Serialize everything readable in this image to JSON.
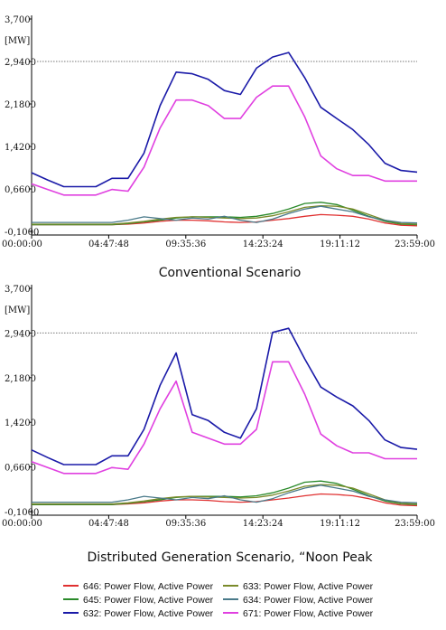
{
  "chart_data": [
    {
      "type": "line",
      "caption": "Conventional Scenario",
      "ylabel": "[MW]",
      "ylim": [
        -0.1,
        3.7
      ],
      "yticks": [
        "3,700",
        "2,9400",
        "2,1800",
        "1,4200",
        "0,6600",
        "-0,1000"
      ],
      "ytick_values": [
        3.7,
        2.94,
        2.18,
        1.42,
        0.66,
        -0.1
      ],
      "xticks": [
        "00:00:00",
        "04:47:48",
        "09:35:36",
        "14:23:24",
        "19:11:12",
        "23:59:00"
      ],
      "x_hours": [
        0,
        1,
        2,
        3,
        4,
        5,
        6,
        7,
        8,
        9,
        10,
        11,
        12,
        13,
        14,
        15,
        16,
        17,
        18,
        19,
        20,
        21,
        22,
        23,
        24
      ],
      "reference_line": 2.94,
      "series": [
        {
          "name": "646: Power Flow, Active Power",
          "color": "#e03030",
          "values": [
            0.02,
            0.02,
            0.02,
            0.02,
            0.02,
            0.02,
            0.03,
            0.05,
            0.08,
            0.1,
            0.1,
            0.09,
            0.07,
            0.06,
            0.07,
            0.1,
            0.13,
            0.17,
            0.2,
            0.19,
            0.17,
            0.12,
            0.05,
            0.01,
            0.0
          ]
        },
        {
          "name": "645: Power Flow, Active Power",
          "color": "#2a8a2a",
          "values": [
            0.02,
            0.02,
            0.02,
            0.02,
            0.02,
            0.02,
            0.04,
            0.07,
            0.1,
            0.14,
            0.16,
            0.16,
            0.16,
            0.15,
            0.17,
            0.22,
            0.3,
            0.4,
            0.42,
            0.38,
            0.28,
            0.17,
            0.08,
            0.03,
            0.02
          ]
        },
        {
          "name": "632: Power Flow, Active Power",
          "color": "#1a1aa8",
          "values": [
            0.95,
            0.82,
            0.7,
            0.7,
            0.7,
            0.85,
            0.85,
            1.3,
            2.15,
            2.75,
            2.72,
            2.62,
            2.42,
            2.35,
            2.82,
            3.02,
            3.1,
            2.65,
            2.12,
            1.92,
            1.72,
            1.45,
            1.12,
            0.99,
            0.96
          ]
        },
        {
          "name": "633: Power Flow, Active Power",
          "color": "#7a8a2a",
          "values": [
            0.03,
            0.03,
            0.03,
            0.03,
            0.03,
            0.03,
            0.05,
            0.08,
            0.12,
            0.15,
            0.16,
            0.15,
            0.14,
            0.13,
            0.14,
            0.18,
            0.25,
            0.33,
            0.36,
            0.35,
            0.3,
            0.2,
            0.1,
            0.04,
            0.03
          ]
        },
        {
          "name": "634: Power Flow, Active Power",
          "color": "#4a7a8a",
          "values": [
            0.06,
            0.06,
            0.06,
            0.06,
            0.06,
            0.06,
            0.1,
            0.16,
            0.13,
            0.1,
            0.14,
            0.12,
            0.17,
            0.1,
            0.06,
            0.12,
            0.22,
            0.3,
            0.35,
            0.3,
            0.25,
            0.16,
            0.1,
            0.06,
            0.05
          ]
        },
        {
          "name": "671: Power Flow, Active Power",
          "color": "#e040e0",
          "values": [
            0.75,
            0.65,
            0.55,
            0.55,
            0.55,
            0.65,
            0.62,
            1.05,
            1.75,
            2.25,
            2.25,
            2.15,
            1.92,
            1.92,
            2.3,
            2.5,
            2.5,
            1.95,
            1.25,
            1.02,
            0.9,
            0.9,
            0.8,
            0.8,
            0.8
          ]
        }
      ]
    },
    {
      "type": "line",
      "caption": "Distributed Generation Scenario, “Noon Peak",
      "ylabel": "[MW]",
      "ylim": [
        -0.1,
        3.7
      ],
      "yticks": [
        "3,700",
        "2,9400",
        "2,1800",
        "1,4200",
        "0,6600",
        "-0,1000"
      ],
      "ytick_values": [
        3.7,
        2.94,
        2.18,
        1.42,
        0.66,
        -0.1
      ],
      "xticks": [
        "00:00:00",
        "04:47:48",
        "09:35:36",
        "14:23:24",
        "19:11:12",
        "23:59:00"
      ],
      "x_hours": [
        0,
        1,
        2,
        3,
        4,
        5,
        6,
        7,
        8,
        9,
        10,
        11,
        12,
        13,
        14,
        15,
        16,
        17,
        18,
        19,
        20,
        21,
        22,
        23,
        24
      ],
      "reference_line": 2.94,
      "series": [
        {
          "name": "646: Power Flow, Active Power",
          "color": "#e03030",
          "values": [
            0.02,
            0.02,
            0.02,
            0.02,
            0.02,
            0.02,
            0.03,
            0.05,
            0.08,
            0.1,
            0.1,
            0.09,
            0.07,
            0.06,
            0.07,
            0.1,
            0.13,
            0.17,
            0.2,
            0.19,
            0.17,
            0.12,
            0.05,
            0.01,
            0.0
          ]
        },
        {
          "name": "645: Power Flow, Active Power",
          "color": "#2a8a2a",
          "values": [
            0.02,
            0.02,
            0.02,
            0.02,
            0.02,
            0.02,
            0.04,
            0.07,
            0.1,
            0.14,
            0.16,
            0.16,
            0.16,
            0.15,
            0.17,
            0.22,
            0.3,
            0.4,
            0.42,
            0.38,
            0.28,
            0.17,
            0.08,
            0.03,
            0.02
          ]
        },
        {
          "name": "632: Power Flow, Active Power",
          "color": "#1a1aa8",
          "values": [
            0.95,
            0.82,
            0.7,
            0.7,
            0.7,
            0.85,
            0.85,
            1.3,
            2.05,
            2.6,
            1.55,
            1.45,
            1.25,
            1.15,
            1.65,
            2.95,
            3.02,
            2.5,
            2.02,
            1.85,
            1.7,
            1.45,
            1.12,
            0.99,
            0.96
          ]
        },
        {
          "name": "633: Power Flow, Active Power",
          "color": "#7a8a2a",
          "values": [
            0.03,
            0.03,
            0.03,
            0.03,
            0.03,
            0.03,
            0.05,
            0.08,
            0.12,
            0.15,
            0.16,
            0.15,
            0.14,
            0.13,
            0.14,
            0.18,
            0.25,
            0.33,
            0.36,
            0.35,
            0.3,
            0.2,
            0.1,
            0.04,
            0.03
          ]
        },
        {
          "name": "634: Power Flow, Active Power",
          "color": "#4a7a8a",
          "values": [
            0.06,
            0.06,
            0.06,
            0.06,
            0.06,
            0.06,
            0.1,
            0.16,
            0.13,
            0.1,
            0.14,
            0.12,
            0.17,
            0.1,
            0.06,
            0.12,
            0.22,
            0.3,
            0.35,
            0.3,
            0.25,
            0.16,
            0.1,
            0.06,
            0.05
          ]
        },
        {
          "name": "671: Power Flow, Active Power",
          "color": "#e040e0",
          "values": [
            0.75,
            0.65,
            0.55,
            0.55,
            0.55,
            0.65,
            0.62,
            1.05,
            1.65,
            2.12,
            1.25,
            1.15,
            1.05,
            1.05,
            1.3,
            2.45,
            2.45,
            1.9,
            1.22,
            1.02,
            0.9,
            0.9,
            0.8,
            0.8,
            0.8
          ]
        }
      ]
    }
  ],
  "legend": [
    {
      "label": "646: Power Flow, Active Power",
      "color": "#e03030"
    },
    {
      "label": "633: Power Flow, Active Power",
      "color": "#7a8a2a"
    },
    {
      "label": "645: Power Flow, Active Power",
      "color": "#2a8a2a"
    },
    {
      "label": "634: Power Flow, Active Power",
      "color": "#4a7a8a"
    },
    {
      "label": "632: Power Flow, Active Power",
      "color": "#1a1aa8"
    },
    {
      "label": "671: Power Flow, Active Power",
      "color": "#e040e0"
    }
  ]
}
